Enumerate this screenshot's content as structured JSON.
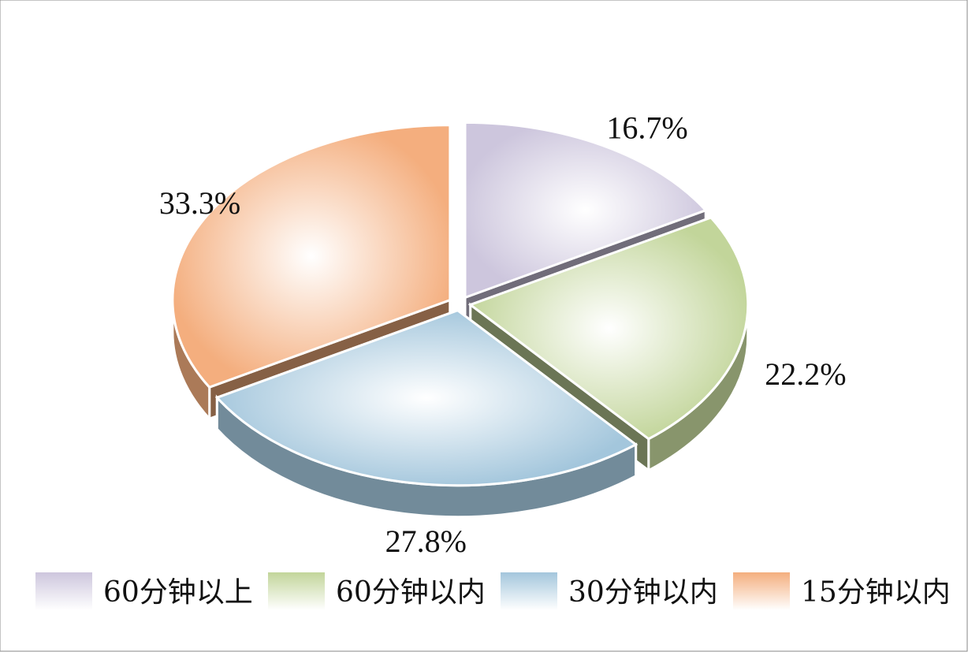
{
  "chart_data": {
    "type": "pie",
    "categories": [
      "60分钟以上",
      "60分钟以内",
      "30分钟以内",
      "15分钟以内"
    ],
    "values": [
      16.7,
      22.2,
      27.8,
      33.3
    ],
    "value_labels": [
      "16.7%",
      "22.2%",
      "27.8%",
      "33.3%"
    ],
    "colors": [
      "#cdc6dd",
      "#c2d59a",
      "#a3c6dc",
      "#f4ae7e"
    ]
  }
}
